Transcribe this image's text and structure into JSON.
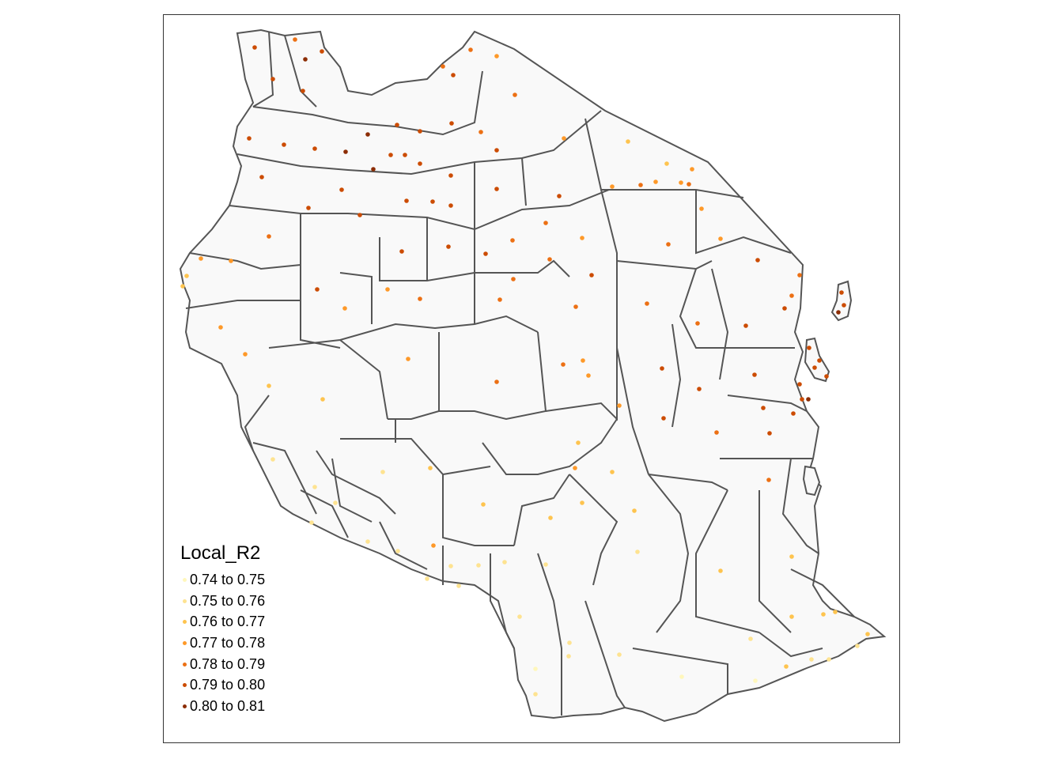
{
  "map": {
    "legend_title": "Local_R2",
    "classes": [
      {
        "label": "0.74 to 0.75",
        "color": "#FFF7BC"
      },
      {
        "label": "0.75 to 0.76",
        "color": "#FEE391"
      },
      {
        "label": "0.76 to 0.77",
        "color": "#FEC44F"
      },
      {
        "label": "0.77 to 0.78",
        "color": "#FE9929"
      },
      {
        "label": "0.78 to 0.79",
        "color": "#EC7014"
      },
      {
        "label": "0.79 to 0.80",
        "color": "#CC4C02"
      },
      {
        "label": "0.80 to 0.81",
        "color": "#8C2D04"
      }
    ],
    "region_fill": "#F9F9F9",
    "border_color": "#555555"
  }
}
